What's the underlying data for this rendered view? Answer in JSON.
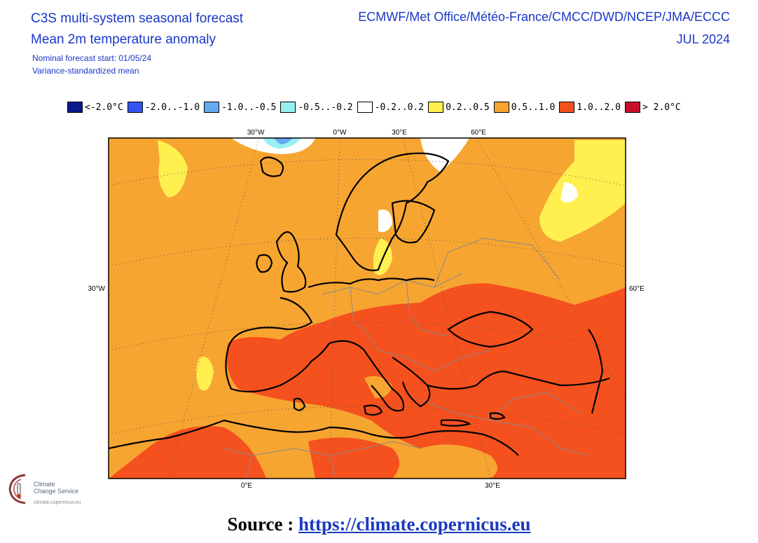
{
  "header": {
    "title_line1": "C3S multi-system seasonal forecast",
    "title_line2": "Mean 2m temperature anomaly",
    "subtitle_line1": "Nominal forecast start: 01/05/24",
    "subtitle_line2": "Variance-standardized mean",
    "centres": "ECMWF/Met Office/Météo-France/CMCC/DWD/NCEP/JMA/ECCC",
    "month": "JUL 2024"
  },
  "legend": [
    {
      "label": "<-2.0°C",
      "color": "#0a1a8c"
    },
    {
      "label": "-2.0..-1.0",
      "color": "#3355ee"
    },
    {
      "label": "-1.0..-0.5",
      "color": "#66aaf0"
    },
    {
      "label": "-0.5..-0.2",
      "color": "#99f0f0"
    },
    {
      "label": "-0.2..0.2",
      "color": "#ffffff"
    },
    {
      "label": "0.2..0.5",
      "color": "#fff050"
    },
    {
      "label": "0.5..1.0",
      "color": "#f7a531"
    },
    {
      "label": "1.0..2.0",
      "color": "#f4511e"
    },
    {
      "label": "> 2.0°C",
      "color": "#c8102e"
    }
  ],
  "map": {
    "top_labels": [
      "30°W",
      "0°W",
      "30°E",
      "60°E"
    ],
    "side_left_label": "30°W",
    "side_right_label": "60°E",
    "bottom_labels": [
      "0°E",
      "30°E"
    ]
  },
  "logo": {
    "name_line1": "Climate",
    "name_line2": "Change Service",
    "url": "climate.copernicus.eu"
  },
  "footer": {
    "prefix": "Source : ",
    "link": "https://climate.copernicus.eu"
  }
}
